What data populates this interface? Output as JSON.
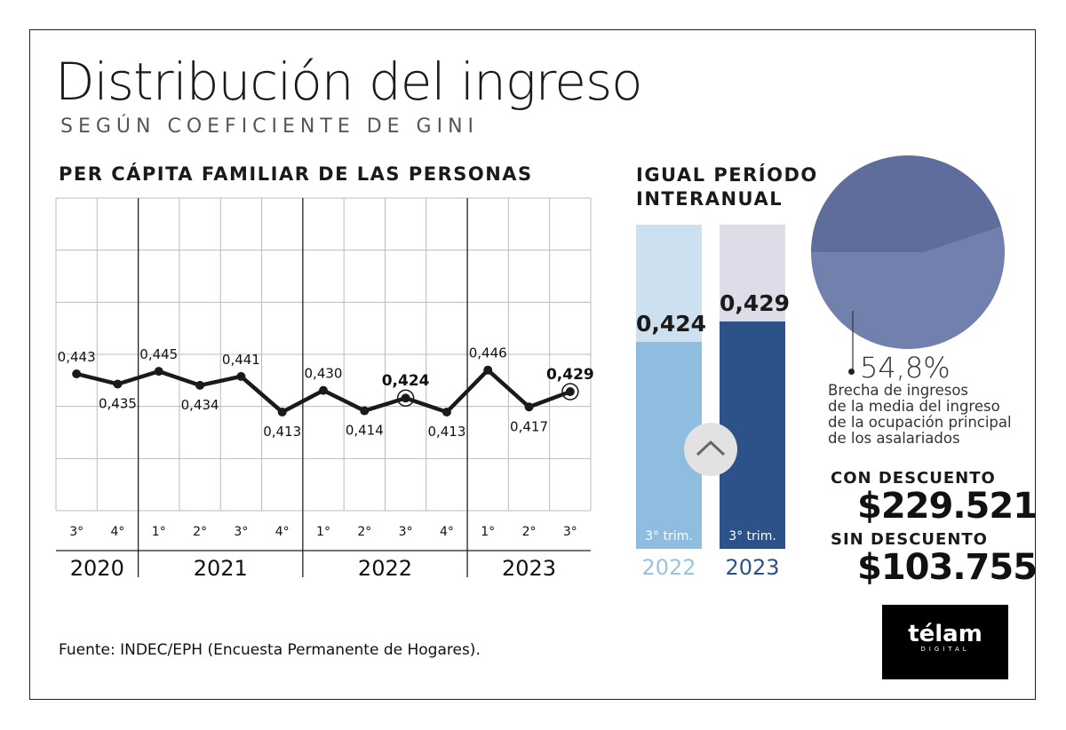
{
  "title": "Distribución del ingreso",
  "subtitle": "SEGÚN COEFICIENTE DE GINI",
  "source": "Fuente: INDEC/EPH (Encuesta Permanente de Hogares).",
  "logo": {
    "name": "télam",
    "sub": "DIGITAL"
  },
  "chart_data": [
    {
      "type": "line",
      "title": "PER CÁPITA FAMILIAR DE LAS PERSONAS",
      "categories": [
        "3°",
        "4°",
        "1°",
        "2°",
        "3°",
        "4°",
        "1°",
        "2°",
        "3°",
        "4°",
        "1°",
        "2°",
        "3°"
      ],
      "years": [
        {
          "label": "2020",
          "span": 2
        },
        {
          "label": "2021",
          "span": 4
        },
        {
          "label": "2022",
          "span": 4
        },
        {
          "label": "2023",
          "span": 3
        }
      ],
      "values": [
        0.443,
        0.435,
        0.445,
        0.434,
        0.441,
        0.413,
        0.43,
        0.414,
        0.424,
        0.413,
        0.446,
        0.417,
        0.429
      ],
      "labels": [
        "0,443",
        "0,435",
        "0,445",
        "0,434",
        "0,441",
        "0,413",
        "0,430",
        "0,414",
        "0,424",
        "0,413",
        "0,446",
        "0,417",
        "0,429"
      ],
      "highlighted": [
        8,
        12
      ],
      "grid": true
    },
    {
      "type": "bar",
      "title_line1": "IGUAL PERÍODO",
      "title_line2": "INTERANUAL",
      "categories": [
        "2022",
        "2023"
      ],
      "values": [
        0.424,
        0.429
      ],
      "labels": [
        "0,424",
        "0,429"
      ],
      "sublabels": [
        "3° trim.",
        "3° trim."
      ],
      "colors": [
        "#8fbde0",
        "#2d5189"
      ]
    },
    {
      "type": "pie",
      "values": [
        54.8,
        45.2
      ],
      "label": "54,8%",
      "description": [
        "Brecha de ingresos",
        "de la media del ingreso",
        "de la ocupación principal",
        "de los asalariados"
      ]
    }
  ],
  "con_descuento": {
    "label": "CON DESCUENTO",
    "value": "$229.521"
  },
  "sin_descuento": {
    "label": "SIN DESCUENTO",
    "value": "$103.755"
  }
}
